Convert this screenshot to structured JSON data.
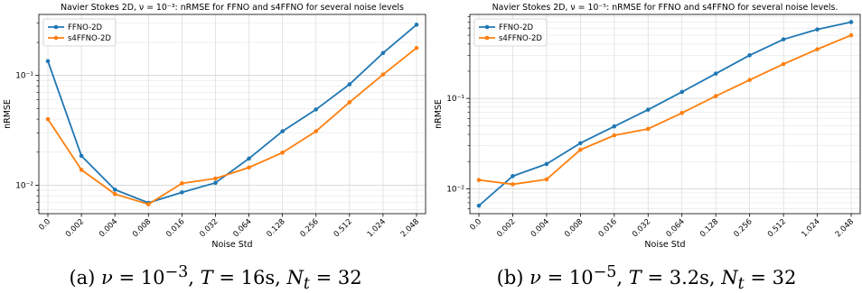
{
  "colors": {
    "ffno": "#1f77b4",
    "s4ffno": "#ff7f0e"
  },
  "chart_data": [
    {
      "type": "line",
      "title": "Navier Stokes 2D, ν = 10⁻³: nRMSE for FFNO and s4FFNO for several noise levels",
      "xlabel": "Noise Std",
      "ylabel": "nRMSE",
      "yscale": "log",
      "ylim": [
        0.0055,
        0.36
      ],
      "grid": true,
      "legend": "top-left",
      "categories": [
        "0.0",
        "0.002",
        "0.004",
        "0.008",
        "0.016",
        "0.032",
        "0.064",
        "0.128",
        "0.256",
        "0.512",
        "1.024",
        "2.048"
      ],
      "yticks": [
        {
          "value": 0.01,
          "label": "10⁻²"
        },
        {
          "value": 0.1,
          "label": "10⁻¹"
        }
      ],
      "series": [
        {
          "name": "FFNO-2D",
          "values": [
            0.135,
            0.0185,
            0.0091,
            0.0069,
            0.0086,
            0.0105,
            0.0175,
            0.031,
            0.049,
            0.083,
            0.16,
            0.29
          ]
        },
        {
          "name": "s4FFNO-2D",
          "values": [
            0.04,
            0.0138,
            0.0083,
            0.0067,
            0.0104,
            0.0115,
            0.0145,
            0.0198,
            0.031,
            0.057,
            0.102,
            0.178
          ]
        }
      ],
      "caption": {
        "prefix": "(a) ",
        "nu": "ν",
        "nu_value": " = 10",
        "nu_exp": "−3",
        "t": "T",
        "t_value": " = 16s, ",
        "n": "N",
        "n_sub": "t",
        "n_value": " = 32"
      }
    },
    {
      "type": "line",
      "title": "Navier Stokes 2D, ν = 10⁻⁵: nRMSE for FFNO and s4FFNO for several noise levels.",
      "xlabel": "Noise Std",
      "ylabel": "nRMSE",
      "yscale": "log",
      "ylim": [
        0.0053,
        0.85
      ],
      "grid": true,
      "legend": "top-left",
      "categories": [
        "0.0",
        "0.002",
        "0.004",
        "0.008",
        "0.016",
        "0.032",
        "0.064",
        "0.128",
        "0.256",
        "0.512",
        "1.024",
        "2.048"
      ],
      "yticks": [
        {
          "value": 0.01,
          "label": "10⁻²"
        },
        {
          "value": 0.1,
          "label": "10⁻¹"
        }
      ],
      "series": [
        {
          "name": "FFNO-2D",
          "values": [
            0.0065,
            0.0138,
            0.0188,
            0.032,
            0.049,
            0.075,
            0.118,
            0.188,
            0.3,
            0.45,
            0.58,
            0.7
          ]
        },
        {
          "name": "s4FFNO-2D",
          "values": [
            0.0125,
            0.0112,
            0.0127,
            0.027,
            0.039,
            0.046,
            0.069,
            0.106,
            0.16,
            0.24,
            0.35,
            0.5
          ]
        }
      ],
      "caption": {
        "prefix": "(b) ",
        "nu": "ν",
        "nu_value": " = 10",
        "nu_exp": "−5",
        "t": "T",
        "t_value": " = 3.2s, ",
        "n": "N",
        "n_sub": "t",
        "n_value": " = 32"
      }
    }
  ]
}
